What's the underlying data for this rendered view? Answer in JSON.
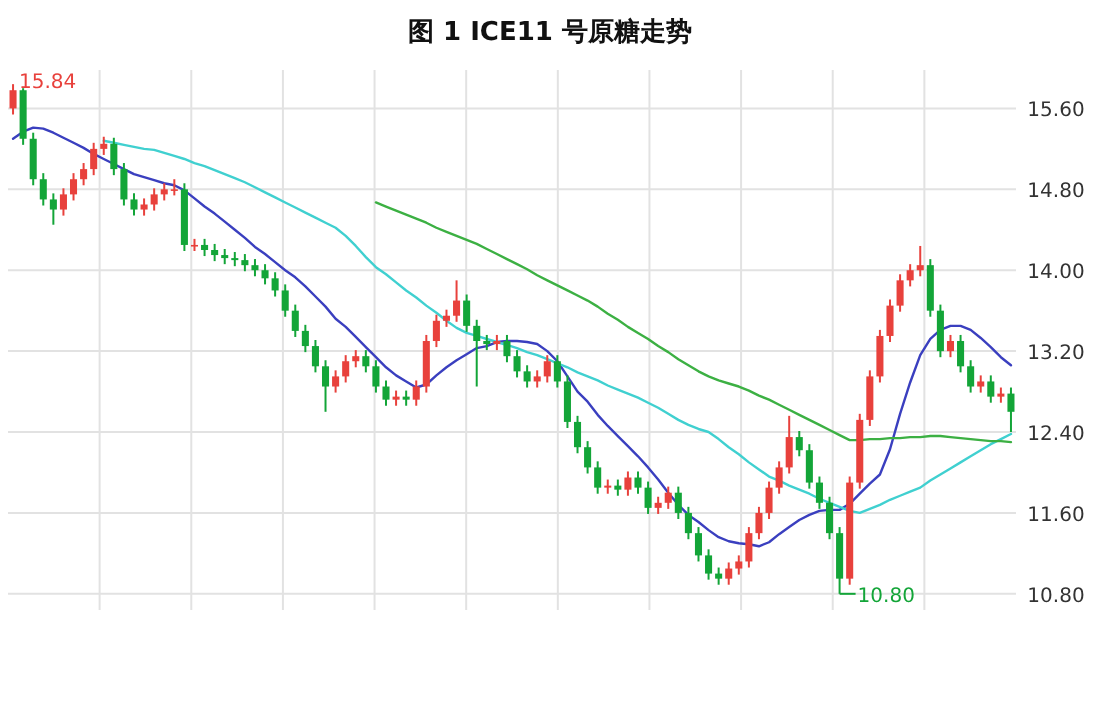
{
  "chart_data": {
    "type": "candlestick",
    "title": "图 1 ICE11 号原糖走势",
    "categories": [
      null,
      null,
      null,
      null,
      null,
      null,
      null,
      null,
      null,
      null,
      null,
      null,
      null,
      null,
      null,
      null,
      null,
      null,
      null,
      null,
      null,
      null,
      null,
      null,
      null,
      null,
      null,
      null,
      null,
      null,
      null,
      null,
      null,
      null,
      null,
      null,
      null,
      null,
      null,
      null,
      null,
      null,
      null,
      null,
      null,
      null,
      null,
      null,
      null,
      null,
      null,
      null,
      null,
      null,
      null,
      null,
      null,
      null,
      null,
      null,
      null,
      null,
      null,
      null,
      null,
      null,
      null,
      null,
      null,
      null,
      null,
      null,
      null,
      null,
      null,
      null,
      null,
      null,
      null,
      null,
      null,
      null,
      null,
      null,
      null,
      null,
      null,
      null,
      null,
      null,
      null,
      null,
      null,
      null,
      null,
      null,
      null,
      null,
      null,
      null
    ],
    "ohlc": [
      [
        15.6,
        15.84,
        15.54,
        15.78
      ],
      [
        15.78,
        15.8,
        15.24,
        15.3
      ],
      [
        15.3,
        15.36,
        14.84,
        14.9
      ],
      [
        14.9,
        14.96,
        14.64,
        14.7
      ],
      [
        14.7,
        14.76,
        14.45,
        14.6
      ],
      [
        14.6,
        14.81,
        14.54,
        14.75
      ],
      [
        14.75,
        14.96,
        14.69,
        14.9
      ],
      [
        14.9,
        15.06,
        14.84,
        15.0
      ],
      [
        15.0,
        15.26,
        14.94,
        15.2
      ],
      [
        15.2,
        15.32,
        15.14,
        15.25
      ],
      [
        15.25,
        15.31,
        14.94,
        15.0
      ],
      [
        15.0,
        15.06,
        14.64,
        14.7
      ],
      [
        14.7,
        14.76,
        14.54,
        14.6
      ],
      [
        14.6,
        14.71,
        14.54,
        14.65
      ],
      [
        14.65,
        14.81,
        14.59,
        14.75
      ],
      [
        14.75,
        14.86,
        14.69,
        14.8
      ],
      [
        14.8,
        14.9,
        14.74,
        14.8
      ],
      [
        14.8,
        14.86,
        14.19,
        14.25
      ],
      [
        14.25,
        14.31,
        14.19,
        14.25
      ],
      [
        14.25,
        14.31,
        14.14,
        14.2
      ],
      [
        14.2,
        14.26,
        14.09,
        14.15
      ],
      [
        14.15,
        14.21,
        14.06,
        14.12
      ],
      [
        14.12,
        14.18,
        14.04,
        14.1
      ],
      [
        14.1,
        14.16,
        13.99,
        14.05
      ],
      [
        14.05,
        14.11,
        13.94,
        14.0
      ],
      [
        14.0,
        14.06,
        13.86,
        13.92
      ],
      [
        13.92,
        13.98,
        13.74,
        13.8
      ],
      [
        13.8,
        13.86,
        13.54,
        13.6
      ],
      [
        13.6,
        13.66,
        13.34,
        13.4
      ],
      [
        13.4,
        13.46,
        13.19,
        13.25
      ],
      [
        13.25,
        13.31,
        12.99,
        13.05
      ],
      [
        13.05,
        13.11,
        12.6,
        12.85
      ],
      [
        12.85,
        13.01,
        12.79,
        12.95
      ],
      [
        12.95,
        13.16,
        12.89,
        13.1
      ],
      [
        13.1,
        13.21,
        13.04,
        13.15
      ],
      [
        13.15,
        13.21,
        12.99,
        13.05
      ],
      [
        13.05,
        13.11,
        12.79,
        12.85
      ],
      [
        12.85,
        12.91,
        12.66,
        12.72
      ],
      [
        12.72,
        12.81,
        12.66,
        12.75
      ],
      [
        12.75,
        12.81,
        12.66,
        12.72
      ],
      [
        12.72,
        12.91,
        12.66,
        12.85
      ],
      [
        12.85,
        13.36,
        12.79,
        13.3
      ],
      [
        13.3,
        13.56,
        13.24,
        13.5
      ],
      [
        13.5,
        13.61,
        13.44,
        13.55
      ],
      [
        13.55,
        13.9,
        13.49,
        13.7
      ],
      [
        13.7,
        13.76,
        13.39,
        13.45
      ],
      [
        13.45,
        13.51,
        12.85,
        13.3
      ],
      [
        13.3,
        13.36,
        13.21,
        13.27
      ],
      [
        13.27,
        13.36,
        13.21,
        13.3
      ],
      [
        13.3,
        13.36,
        13.09,
        13.15
      ],
      [
        13.15,
        13.21,
        12.94,
        13.0
      ],
      [
        13.0,
        13.06,
        12.84,
        12.9
      ],
      [
        12.9,
        13.01,
        12.84,
        12.95
      ],
      [
        12.95,
        13.16,
        12.89,
        13.1
      ],
      [
        13.1,
        13.16,
        12.84,
        12.9
      ],
      [
        12.9,
        12.96,
        12.44,
        12.5
      ],
      [
        12.5,
        12.56,
        12.19,
        12.25
      ],
      [
        12.25,
        12.31,
        11.99,
        12.05
      ],
      [
        12.05,
        12.11,
        11.79,
        11.85
      ],
      [
        11.85,
        11.93,
        11.79,
        11.87
      ],
      [
        11.87,
        11.93,
        11.77,
        11.83
      ],
      [
        11.83,
        12.01,
        11.77,
        11.95
      ],
      [
        11.95,
        12.01,
        11.79,
        11.85
      ],
      [
        11.85,
        11.91,
        11.59,
        11.65
      ],
      [
        11.65,
        11.76,
        11.59,
        11.7
      ],
      [
        11.7,
        11.86,
        11.64,
        11.8
      ],
      [
        11.8,
        11.86,
        11.54,
        11.6
      ],
      [
        11.6,
        11.66,
        11.34,
        11.4
      ],
      [
        11.4,
        11.46,
        11.12,
        11.18
      ],
      [
        11.18,
        11.24,
        10.94,
        11.0
      ],
      [
        11.0,
        11.06,
        10.89,
        10.95
      ],
      [
        10.95,
        11.11,
        10.89,
        11.05
      ],
      [
        11.05,
        11.18,
        10.99,
        11.12
      ],
      [
        11.12,
        11.46,
        11.06,
        11.4
      ],
      [
        11.4,
        11.66,
        11.34,
        11.6
      ],
      [
        11.6,
        11.91,
        11.54,
        11.85
      ],
      [
        11.85,
        12.11,
        11.79,
        12.05
      ],
      [
        12.05,
        12.56,
        11.99,
        12.35
      ],
      [
        12.35,
        12.41,
        12.16,
        12.22
      ],
      [
        12.22,
        12.28,
        11.84,
        11.9
      ],
      [
        11.9,
        11.96,
        11.64,
        11.7
      ],
      [
        11.7,
        11.76,
        11.34,
        11.4
      ],
      [
        11.4,
        11.46,
        10.8,
        10.95
      ],
      [
        10.95,
        11.96,
        10.89,
        11.9
      ],
      [
        11.9,
        12.58,
        11.84,
        12.52
      ],
      [
        12.52,
        13.01,
        12.46,
        12.95
      ],
      [
        12.95,
        13.41,
        12.89,
        13.35
      ],
      [
        13.35,
        13.71,
        13.29,
        13.65
      ],
      [
        13.65,
        13.96,
        13.59,
        13.9
      ],
      [
        13.9,
        14.06,
        13.84,
        14.0
      ],
      [
        14.0,
        14.24,
        13.94,
        14.05
      ],
      [
        14.05,
        14.11,
        13.54,
        13.6
      ],
      [
        13.6,
        13.66,
        13.14,
        13.2
      ],
      [
        13.2,
        13.36,
        13.14,
        13.3
      ],
      [
        13.3,
        13.36,
        12.99,
        13.05
      ],
      [
        13.05,
        13.11,
        12.79,
        12.85
      ],
      [
        12.85,
        12.96,
        12.79,
        12.9
      ],
      [
        12.9,
        12.96,
        12.69,
        12.75
      ],
      [
        12.75,
        12.84,
        12.69,
        12.78
      ],
      [
        12.78,
        12.84,
        12.4,
        12.6
      ]
    ],
    "colors": [
      "#e8413c",
      "#13a538",
      "#13a538",
      "#13a538",
      "#13a538",
      "#e8413c",
      "#e8413c",
      "#e8413c",
      "#e8413c",
      "#e8413c",
      "#13a538",
      "#13a538",
      "#13a538",
      "#e8413c",
      "#e8413c",
      "#e8413c",
      "#e8413c",
      "#13a538",
      "#e8413c",
      "#13a538",
      "#13a538",
      "#13a538",
      "#13a538",
      "#13a538",
      "#13a538",
      "#13a538",
      "#13a538",
      "#13a538",
      "#13a538",
      "#13a538",
      "#13a538",
      "#13a538",
      "#e8413c",
      "#e8413c",
      "#e8413c",
      "#13a538",
      "#13a538",
      "#13a538",
      "#e8413c",
      "#13a538",
      "#e8413c",
      "#e8413c",
      "#e8413c",
      "#e8413c",
      "#e8413c",
      "#13a538",
      "#13a538",
      "#13a538",
      "#e8413c",
      "#13a538",
      "#13a538",
      "#13a538",
      "#e8413c",
      "#e8413c",
      "#13a538",
      "#13a538",
      "#13a538",
      "#13a538",
      "#13a538",
      "#e8413c",
      "#13a538",
      "#e8413c",
      "#13a538",
      "#13a538",
      "#e8413c",
      "#e8413c",
      "#13a538",
      "#13a538",
      "#13a538",
      "#13a538",
      "#13a538",
      "#e8413c",
      "#e8413c",
      "#e8413c",
      "#e8413c",
      "#e8413c",
      "#e8413c",
      "#e8413c",
      "#13a538",
      "#13a538",
      "#13a538",
      "#13a538",
      "#13a538",
      "#e8413c",
      "#e8413c",
      "#e8413c",
      "#e8413c",
      "#e8413c",
      "#e8413c",
      "#e8413c",
      "#e8413c",
      "#13a538",
      "#13a538",
      "#e8413c",
      "#13a538",
      "#13a538",
      "#e8413c",
      "#13a538",
      "#e8413c",
      "#13a538"
    ],
    "series": [
      {
        "type": "line",
        "color": "#3a3fbf",
        "values": [
          15.3,
          15.37,
          15.41,
          15.4,
          15.36,
          15.31,
          15.26,
          15.21,
          15.15,
          15.1,
          15.05,
          15.0,
          14.95,
          14.92,
          14.89,
          14.86,
          14.84,
          14.79,
          14.71,
          14.63,
          14.56,
          14.48,
          14.4,
          14.32,
          14.23,
          14.16,
          14.08,
          14.0,
          13.93,
          13.84,
          13.74,
          13.64,
          13.52,
          13.44,
          13.34,
          13.24,
          13.14,
          13.04,
          12.96,
          12.9,
          12.84,
          12.87,
          12.96,
          13.04,
          13.11,
          13.17,
          13.23,
          13.25,
          13.29,
          13.3,
          13.3,
          13.29,
          13.27,
          13.2,
          13.1,
          12.95,
          12.8,
          12.7,
          12.57,
          12.46,
          12.36,
          12.26,
          12.16,
          12.05,
          11.93,
          11.8,
          11.68,
          11.58,
          11.51,
          11.43,
          11.36,
          11.32,
          11.3,
          11.29,
          11.27,
          11.31,
          11.39,
          11.46,
          11.53,
          11.58,
          11.62,
          11.63,
          11.63,
          11.69,
          11.79,
          11.89,
          11.98,
          12.23,
          12.58,
          12.89,
          13.16,
          13.32,
          13.41,
          13.45,
          13.45,
          13.41,
          13.33,
          13.24,
          13.14,
          13.06
        ]
      },
      {
        "type": "line",
        "color": "#40d0d0",
        "values": [
          null,
          null,
          null,
          null,
          null,
          null,
          null,
          null,
          null,
          15.28,
          15.26,
          15.24,
          15.22,
          15.2,
          15.19,
          15.16,
          15.13,
          15.1,
          15.06,
          15.03,
          14.99,
          14.95,
          14.91,
          14.87,
          14.82,
          14.77,
          14.72,
          14.67,
          14.62,
          14.57,
          14.52,
          14.47,
          14.42,
          14.34,
          14.24,
          14.13,
          14.03,
          13.96,
          13.88,
          13.8,
          13.73,
          13.65,
          13.58,
          13.5,
          13.43,
          13.38,
          13.35,
          13.32,
          13.29,
          13.26,
          13.23,
          13.19,
          13.16,
          13.12,
          13.08,
          13.04,
          12.99,
          12.95,
          12.91,
          12.86,
          12.82,
          12.78,
          12.74,
          12.69,
          12.64,
          12.58,
          12.52,
          12.47,
          12.43,
          12.4,
          12.33,
          12.25,
          12.18,
          12.1,
          12.03,
          11.96,
          11.92,
          11.87,
          11.83,
          11.79,
          11.74,
          11.7,
          11.66,
          11.62,
          11.6,
          11.64,
          11.68,
          11.73,
          11.77,
          11.81,
          11.85,
          11.92,
          11.98,
          12.04,
          12.1,
          12.16,
          12.22,
          12.28,
          12.33,
          12.38
        ]
      },
      {
        "type": "line",
        "color": "#3cb043",
        "values": [
          null,
          null,
          null,
          null,
          null,
          null,
          null,
          null,
          null,
          null,
          null,
          null,
          null,
          null,
          null,
          null,
          null,
          null,
          null,
          null,
          null,
          null,
          null,
          null,
          null,
          null,
          null,
          null,
          null,
          null,
          null,
          null,
          null,
          null,
          null,
          null,
          14.67,
          14.63,
          14.59,
          14.55,
          14.51,
          14.47,
          14.42,
          14.38,
          14.34,
          14.3,
          14.26,
          14.21,
          14.16,
          14.11,
          14.06,
          14.01,
          13.95,
          13.9,
          13.85,
          13.8,
          13.75,
          13.7,
          13.64,
          13.57,
          13.51,
          13.44,
          13.38,
          13.32,
          13.25,
          13.19,
          13.12,
          13.06,
          13.0,
          12.95,
          12.91,
          12.88,
          12.85,
          12.81,
          12.76,
          12.72,
          12.67,
          12.62,
          12.57,
          12.52,
          12.47,
          12.42,
          12.37,
          12.32,
          12.32,
          12.33,
          12.33,
          12.34,
          12.34,
          12.35,
          12.35,
          12.36,
          12.36,
          12.35,
          12.34,
          12.33,
          12.32,
          12.31,
          12.31,
          12.3
        ]
      }
    ],
    "ylim": [
      10.64,
      15.98
    ],
    "yticks": [
      {
        "value": 10.8,
        "label": "10.80"
      },
      {
        "value": 11.6,
        "label": "11.60"
      },
      {
        "value": 12.4,
        "label": "12.40"
      },
      {
        "value": 13.2,
        "label": "13.20"
      },
      {
        "value": 14.0,
        "label": "14.00"
      },
      {
        "value": 14.8,
        "label": "14.80"
      },
      {
        "value": 15.6,
        "label": "15.60"
      }
    ],
    "grid": "y",
    "annotations": [
      "15.84",
      "10.80"
    ]
  }
}
